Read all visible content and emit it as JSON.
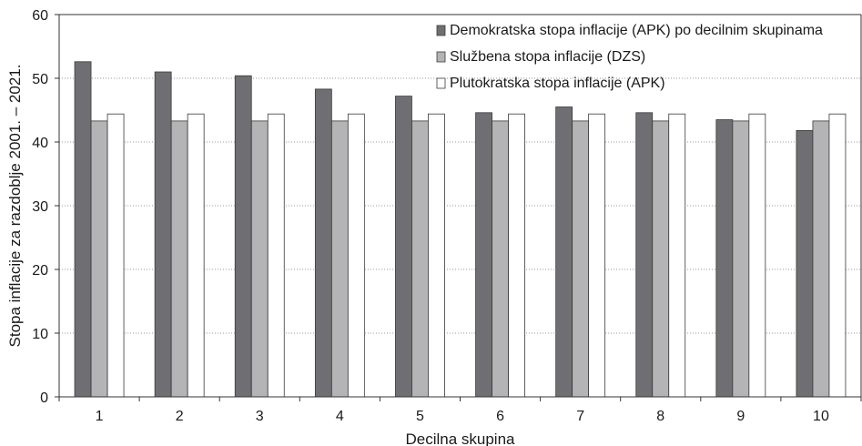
{
  "chart_data": {
    "type": "bar",
    "title": "",
    "xlabel": "Decilna skupina",
    "ylabel": "Stopa inflacije za razdoblje 2001. – 2021.",
    "ylim": [
      0,
      60
    ],
    "yticks": [
      "0",
      "10",
      "20",
      "30",
      "40",
      "50",
      "60"
    ],
    "grid": "horizontal dotted",
    "legend_position": "top-right",
    "categories": [
      "1",
      "2",
      "3",
      "4",
      "5",
      "6",
      "7",
      "8",
      "9",
      "10"
    ],
    "series": [
      {
        "name": "Demokratska stopa inflacije (APK) po decilnim skupinama",
        "color": "#6f6f73",
        "values": [
          52.6,
          51.0,
          50.4,
          48.3,
          47.2,
          44.6,
          45.5,
          44.6,
          43.5,
          41.8
        ]
      },
      {
        "name": "Službena stopa inflacije (DZS)",
        "color": "#b4b4b6",
        "values": [
          43.3,
          43.3,
          43.3,
          43.3,
          43.3,
          43.3,
          43.3,
          43.3,
          43.3,
          43.3
        ]
      },
      {
        "name": "Plutokratska stopa inflacije (APK)",
        "color": "#ffffff",
        "values": [
          44.4,
          44.4,
          44.4,
          44.4,
          44.4,
          44.4,
          44.4,
          44.4,
          44.4,
          44.4
        ]
      }
    ]
  }
}
